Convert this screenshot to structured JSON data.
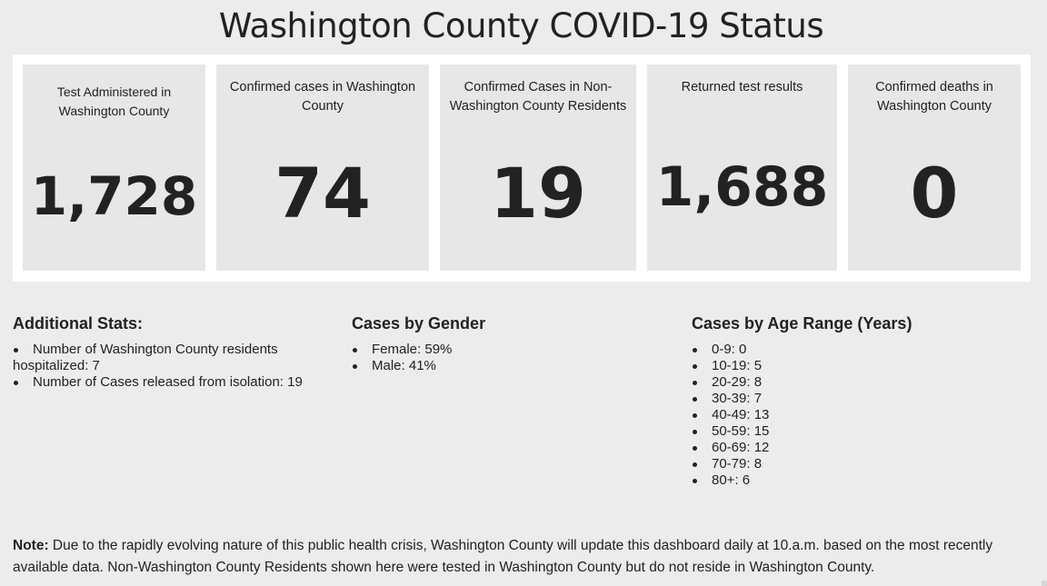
{
  "page": {
    "title": "Washington County COVID-19 Status"
  },
  "cards": [
    {
      "label": "Test Administered in Washington County",
      "value": "1,728"
    },
    {
      "label": "Confirmed cases in Washington County",
      "value": "74"
    },
    {
      "label": "Confirmed Cases in Non-Washington County Residents",
      "value": "19"
    },
    {
      "label": "Returned test results",
      "value": "1,688"
    },
    {
      "label": "Confirmed deaths in Washington County",
      "value": "0"
    }
  ],
  "additional_stats": {
    "title": "Additional Stats:",
    "items": [
      "Number of Washington County residents hospitalized: 7",
      "Number of Cases released from isolation: 19"
    ]
  },
  "gender": {
    "title": "Cases by Gender",
    "items": [
      "Female: 59%",
      "Male: 41%"
    ]
  },
  "age": {
    "title": "Cases by Age Range (Years)",
    "items": [
      "0-9: 0",
      "10-19: 5",
      "20-29: 8",
      "30-39: 7",
      "40-49: 13",
      "50-59: 15",
      "60-69: 12",
      "70-79: 8",
      "80+: 6"
    ]
  },
  "note": {
    "label": "Note:",
    "text": " Due to the rapidly evolving nature of this public health crisis, Washington County will update this dashboard daily at 10.a.m. based on the most recently available data. Non-Washington County Residents shown here were tested in Washington County but do not reside in Washington County."
  }
}
